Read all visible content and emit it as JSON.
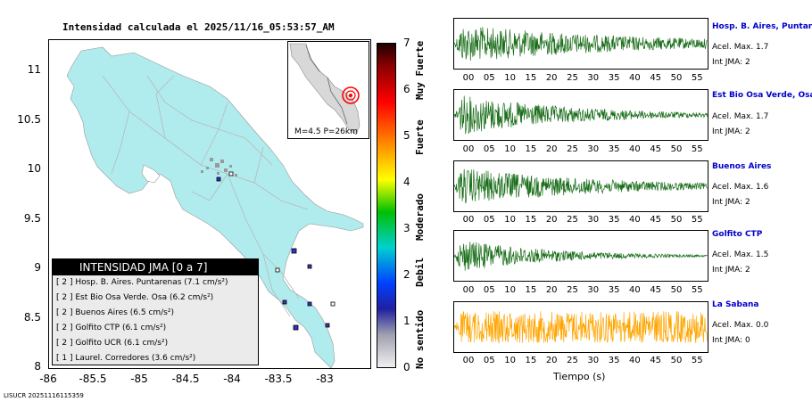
{
  "header": {
    "title": "Intensidad calculada el 2025/11/16_05:53:57_AM"
  },
  "map": {
    "y_ticks": [
      "11",
      "10.5",
      "10",
      "9.5",
      "9",
      "8.5",
      "8"
    ],
    "x_ticks": [
      "-86",
      "-85.5",
      "-85",
      "-84.5",
      "-84",
      "-83.5",
      "-83"
    ],
    "land_color": "#b0ecee",
    "station_marker_colors": [
      "#3333cc",
      "#3a3aaa",
      "#ffffff"
    ]
  },
  "inset": {
    "caption": "M=4.5 P=26km",
    "epicenter_color": "#ff0000"
  },
  "legend": {
    "title": "INTENSIDAD JMA [0 a 7]",
    "rows": [
      "[ 2 ]  Hosp. B. Aires. Puntarenas (7.1 cm/s²)",
      "[ 2 ]  Est Bio Osa Verde. Osa (6.2 cm/s²)",
      "[ 2 ]  Buenos Aires (6.5 cm/s²)",
      "[ 2 ]  Golfito CTP (6.1 cm/s²)",
      "[ 2 ]  Golfito UCR (6.1 cm/s²)",
      "[ 1 ]  Laurel. Corredores (3.6 cm/s²)"
    ]
  },
  "colorbar": {
    "ticks": [
      "7",
      "6",
      "5",
      "4",
      "3",
      "2",
      "1",
      "0"
    ],
    "categories": [
      "Muy Fuerte",
      "Fuerte",
      "Moderado",
      "Debil",
      "No sentido"
    ]
  },
  "traces": {
    "time_ticks": [
      "00",
      "05",
      "10",
      "15",
      "20",
      "25",
      "30",
      "35",
      "40",
      "45",
      "50",
      "55"
    ],
    "x_title": "Tiempo (s)",
    "stations": [
      {
        "name": "Hosp. B. Aires, Puntare",
        "accel": "Acel. Max. 1.7",
        "jma": "Int JMA: 2",
        "color": "#1a6e1a"
      },
      {
        "name": "Est Bio Osa Verde, Osa",
        "accel": "Acel. Max. 1.7",
        "jma": "Int JMA: 2",
        "color": "#1a6e1a"
      },
      {
        "name": "Buenos Aires",
        "accel": "Acel. Max. 1.6",
        "jma": "Int JMA: 2",
        "color": "#1a6e1a"
      },
      {
        "name": "Golfito CTP",
        "accel": "Acel. Max. 1.5",
        "jma": "Int JMA: 2",
        "color": "#1a6e1a"
      },
      {
        "name": "La Sabana",
        "accel": "Acel. Max. 0.0",
        "jma": "Int JMA: 0",
        "color": "#ffa500"
      }
    ]
  },
  "footer": {
    "id": "LISUCR 20251116115359"
  }
}
